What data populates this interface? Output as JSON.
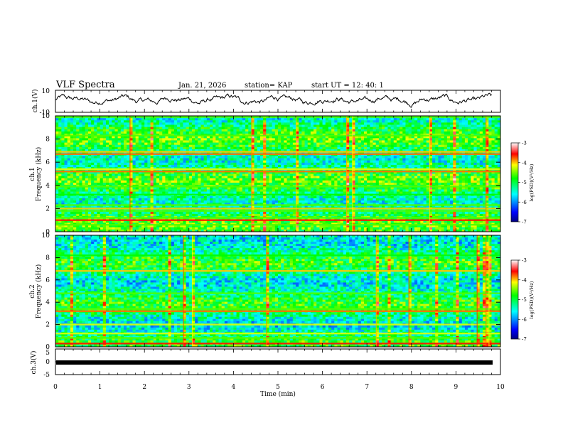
{
  "header": {
    "title": "VLF Spectra",
    "date": "Jan. 21, 2026",
    "station": "station= KAP",
    "start": "start  UT  =   12: 40: 1"
  },
  "chart_data": [
    {
      "type": "line",
      "name": "ch1-waveform",
      "ylabel": "ch.1(V)",
      "ylim": [
        -10,
        10
      ],
      "yticks": [
        "10",
        "-10"
      ],
      "xlim": [
        0,
        9.8
      ],
      "trend": "noisy waveform oscillating between about -5 V and 8 V"
    },
    {
      "type": "heatmap",
      "name": "ch1-spectrogram",
      "ylabel_top": "ch.1",
      "ylabel": "Frequency  (kHz)",
      "ylim": [
        0,
        10
      ],
      "yticks": [
        "0",
        "2",
        "4",
        "6",
        "8",
        "10"
      ],
      "xlim": [
        0,
        9.8
      ],
      "colorbar": {
        "label": "log(PSD)(V²/Hz)",
        "range": [
          -7,
          -3
        ],
        "ticks": [
          "-3",
          "-4",
          "-5",
          "-6",
          "-7"
        ]
      },
      "bands": [
        {
          "f": 0.6,
          "level": 0.6
        },
        {
          "f": 1.0,
          "level": 0.85
        },
        {
          "f": 1.2,
          "level": 0.6
        },
        {
          "f": 1.8,
          "level": 0.6
        },
        {
          "f": 2.0,
          "level": 0.75
        },
        {
          "f": 2.3,
          "level": 0.6
        },
        {
          "f": 3.2,
          "level": 0.55
        },
        {
          "f": 3.9,
          "level": 0.6
        },
        {
          "f": 5.2,
          "level": 0.8
        },
        {
          "f": 5.4,
          "level": 0.7
        },
        {
          "f": 6.7,
          "level": 0.8
        },
        {
          "f": 6.9,
          "level": 0.75
        },
        {
          "f": 8.3,
          "level": 0.6
        },
        {
          "f": 9.9,
          "level": 0.6
        }
      ]
    },
    {
      "type": "heatmap",
      "name": "ch2-spectrogram",
      "ylabel_top": "ch.2",
      "ylabel": "Frequency  (kHz)",
      "ylim": [
        0,
        10
      ],
      "yticks": [
        "0",
        "2",
        "4",
        "6",
        "8",
        "10"
      ],
      "xlim": [
        0,
        9.8
      ],
      "colorbar": {
        "label": "log(PSD)(V²/Hz)",
        "range": [
          -7,
          -3
        ],
        "ticks": [
          "-3",
          "-4",
          "-5",
          "-6",
          "-7"
        ]
      },
      "bands": [
        {
          "f": 0.3,
          "level": 0.85
        },
        {
          "f": 0.8,
          "level": 0.6
        },
        {
          "f": 1.2,
          "level": 0.7
        },
        {
          "f": 2.0,
          "level": 0.7
        },
        {
          "f": 3.2,
          "level": 0.8
        },
        {
          "f": 3.4,
          "level": 0.6
        },
        {
          "f": 4.8,
          "level": 0.6
        },
        {
          "f": 6.8,
          "level": 0.75
        },
        {
          "f": 8.2,
          "level": 0.55
        }
      ]
    },
    {
      "type": "line",
      "name": "ch3-waveform",
      "ylabel": "ch.3(V)",
      "ylim": [
        -5,
        5
      ],
      "yticks": [
        "5",
        "0",
        "-5"
      ],
      "xlim": [
        0,
        9.8
      ],
      "trend": "flat thick trace near -1 V"
    }
  ],
  "xaxis": {
    "label": "Time  (min)",
    "ticks": [
      "0",
      "1",
      "2",
      "3",
      "4",
      "5",
      "6",
      "7",
      "8",
      "9",
      "10"
    ],
    "range": [
      0,
      10
    ]
  }
}
